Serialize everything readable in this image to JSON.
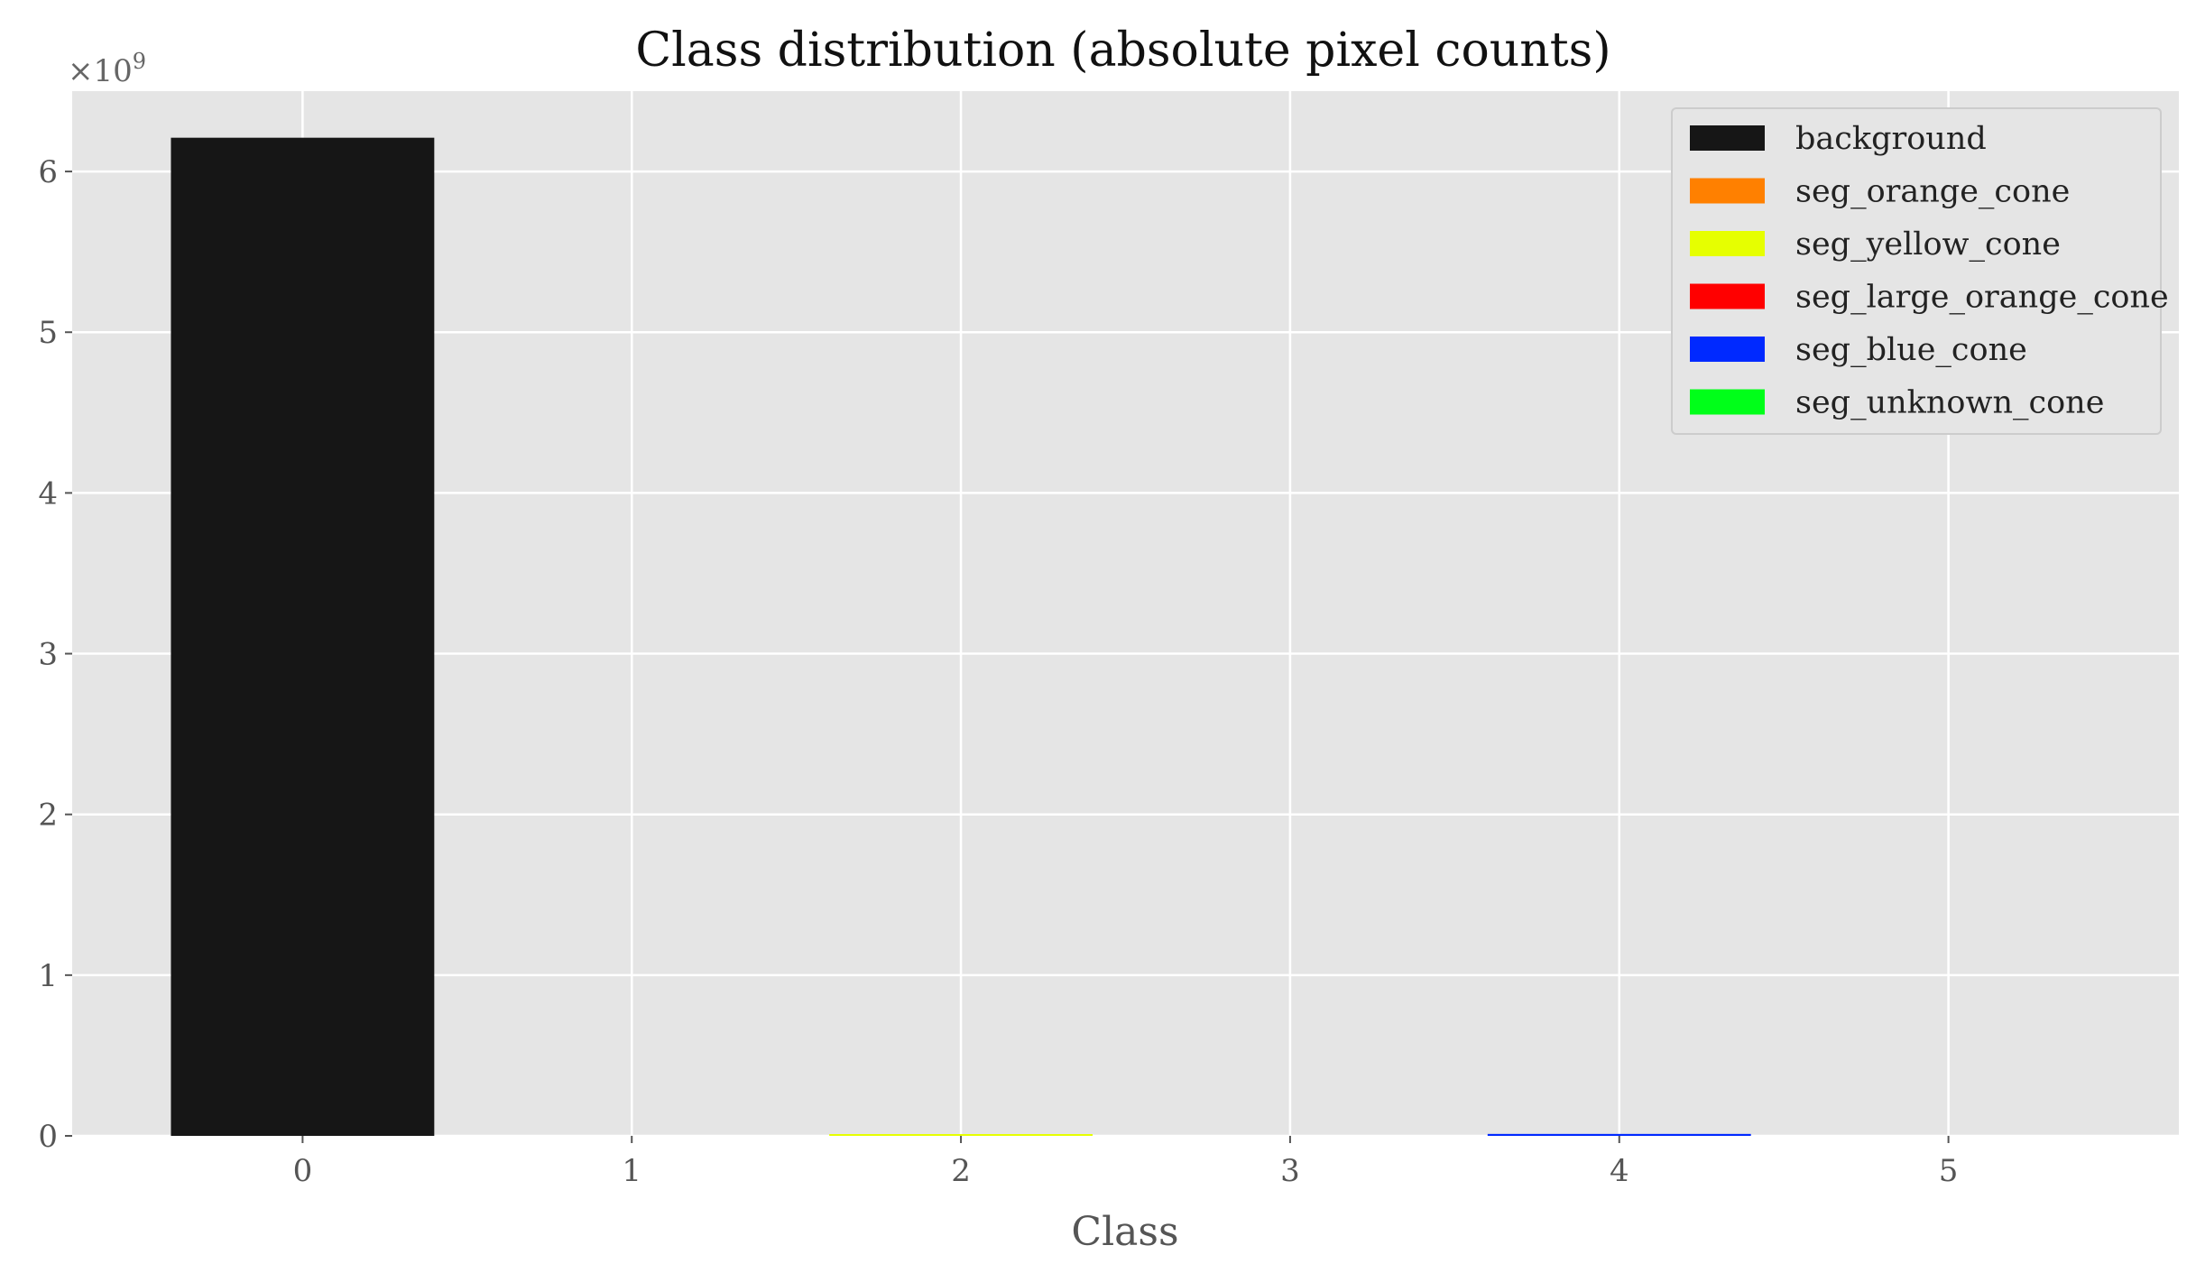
{
  "chart_data": {
    "type": "bar",
    "title": "Class distribution (absolute pixel counts)",
    "xlabel": "Class",
    "ylabel": "",
    "y_multiplier_base": "×10",
    "y_multiplier_exponent": "9",
    "categories": [
      "0",
      "1",
      "2",
      "3",
      "4",
      "5"
    ],
    "values": [
      6.21,
      0.0,
      0.003,
      0.0,
      0.012,
      0.0
    ],
    "colors": [
      "#161616",
      "#ff8000",
      "#e6ff00",
      "#ff0000",
      "#0029ff",
      "#00ff19"
    ],
    "ylim": [
      0,
      6.5
    ],
    "xlim": [
      -0.7,
      5.7
    ],
    "y_ticks": [
      0,
      1,
      2,
      3,
      4,
      5,
      6
    ],
    "grid": true,
    "legend_position": "top-right",
    "legend": [
      {
        "label": "background",
        "color": "#161616"
      },
      {
        "label": "seg_orange_cone",
        "color": "#ff8000"
      },
      {
        "label": "seg_yellow_cone",
        "color": "#e6ff00"
      },
      {
        "label": "seg_large_orange_cone",
        "color": "#ff0000"
      },
      {
        "label": "seg_blue_cone",
        "color": "#0029ff"
      },
      {
        "label": "seg_unknown_cone",
        "color": "#00ff19"
      }
    ]
  }
}
